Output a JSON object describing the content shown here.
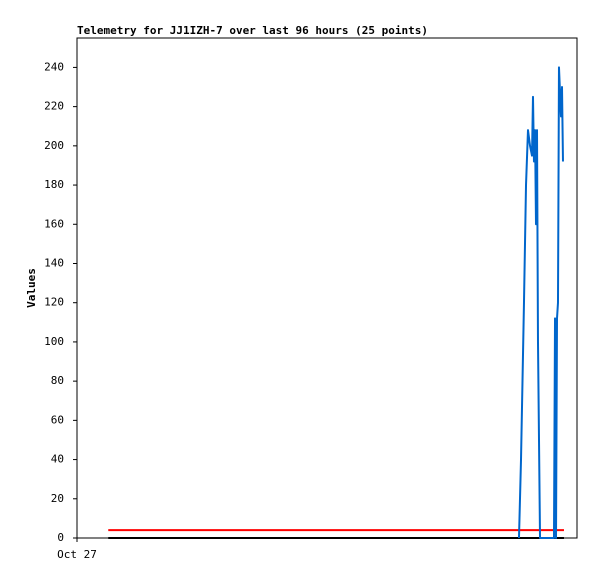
{
  "chart_data": {
    "type": "line",
    "title": "Telemetry for JJ1IZH-7 over last 96 hours (25 points)",
    "y_label": "Values",
    "xlim": [
      0,
      96
    ],
    "xticks": [
      {
        "value": 0,
        "label": "Oct 27"
      }
    ],
    "ylim": [
      0,
      255
    ],
    "yticks": [
      0,
      20,
      40,
      60,
      80,
      100,
      120,
      140,
      160,
      180,
      200,
      220,
      240
    ],
    "series": [
      {
        "color": "#000000",
        "x": [
          6.0,
          93.5
        ],
        "values": [
          0,
          0
        ]
      },
      {
        "color": "#ff0000",
        "x": [
          6.0,
          93.5
        ],
        "values": [
          4,
          4
        ]
      },
      {
        "color": "#0066cc",
        "x": [
          84.86,
          85.25,
          85.82,
          86.21,
          86.59,
          86.98,
          87.36,
          87.55,
          87.74,
          87.94,
          88.13,
          88.32,
          88.51,
          88.9,
          91.58,
          91.78,
          91.97,
          92.16,
          92.35,
          92.54,
          92.93,
          93.12,
          93.31
        ],
        "values": [
          0,
          40,
          120,
          180,
          208,
          200,
          195,
          225,
          192,
          208,
          160,
          208,
          100,
          0,
          0,
          112,
          0,
          112,
          120,
          240,
          215,
          230,
          192
        ]
      }
    ]
  }
}
